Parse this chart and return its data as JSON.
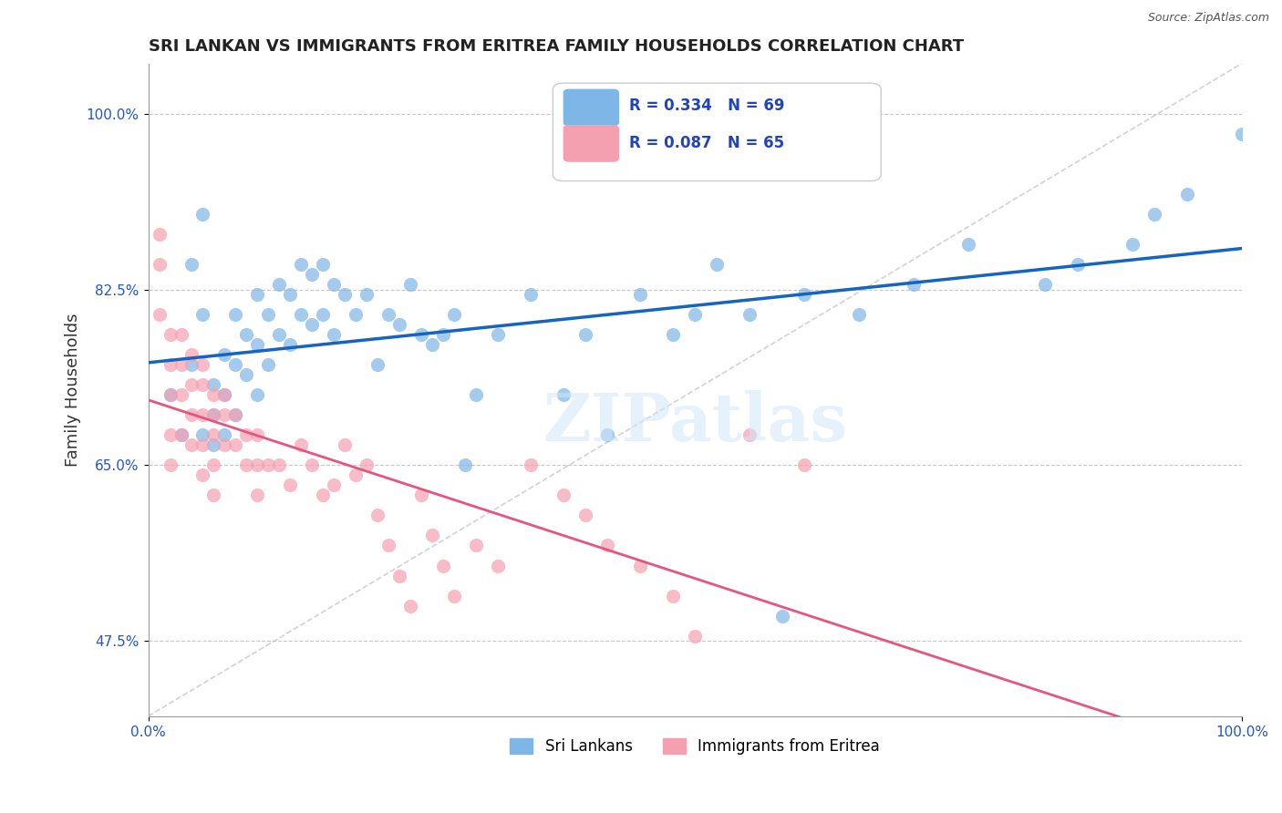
{
  "title": "SRI LANKAN VS IMMIGRANTS FROM ERITREA FAMILY HOUSEHOLDS CORRELATION CHART",
  "source": "Source: ZipAtlas.com",
  "xlabel": "",
  "ylabel": "Family Households",
  "watermark": "ZIPatlas",
  "xlim": [
    0.0,
    1.0
  ],
  "ylim": [
    0.4,
    1.05
  ],
  "yticks": [
    0.475,
    0.65,
    0.825,
    1.0
  ],
  "ytick_labels": [
    "47.5%",
    "65.0%",
    "82.5%",
    "100.0%"
  ],
  "xticks": [
    0.0,
    1.0
  ],
  "xtick_labels": [
    "0.0%",
    "100.0%"
  ],
  "blue_R": 0.334,
  "blue_N": 69,
  "pink_R": 0.087,
  "pink_N": 65,
  "blue_color": "#7EB6E8",
  "pink_color": "#F4A0B0",
  "blue_line_color": "#1565C0",
  "pink_line_color": "#E75480",
  "ref_line_color": "#C0C0C0",
  "legend_label_blue": "Sri Lankans",
  "legend_label_pink": "Immigrants from Eritrea",
  "blue_scatter_x": [
    0.02,
    0.03,
    0.04,
    0.04,
    0.05,
    0.05,
    0.05,
    0.06,
    0.06,
    0.06,
    0.07,
    0.07,
    0.07,
    0.08,
    0.08,
    0.08,
    0.09,
    0.09,
    0.1,
    0.1,
    0.1,
    0.11,
    0.11,
    0.12,
    0.12,
    0.13,
    0.13,
    0.14,
    0.14,
    0.15,
    0.15,
    0.16,
    0.16,
    0.17,
    0.17,
    0.18,
    0.19,
    0.2,
    0.21,
    0.22,
    0.23,
    0.24,
    0.25,
    0.26,
    0.27,
    0.28,
    0.29,
    0.3,
    0.32,
    0.35,
    0.38,
    0.4,
    0.42,
    0.45,
    0.48,
    0.5,
    0.52,
    0.55,
    0.58,
    0.6,
    0.65,
    0.7,
    0.75,
    0.82,
    0.85,
    0.9,
    0.92,
    0.95,
    1.0
  ],
  "blue_scatter_y": [
    0.72,
    0.68,
    0.85,
    0.75,
    0.9,
    0.8,
    0.68,
    0.73,
    0.7,
    0.67,
    0.76,
    0.72,
    0.68,
    0.8,
    0.75,
    0.7,
    0.78,
    0.74,
    0.82,
    0.77,
    0.72,
    0.8,
    0.75,
    0.83,
    0.78,
    0.82,
    0.77,
    0.85,
    0.8,
    0.84,
    0.79,
    0.85,
    0.8,
    0.83,
    0.78,
    0.82,
    0.8,
    0.82,
    0.75,
    0.8,
    0.79,
    0.83,
    0.78,
    0.77,
    0.78,
    0.8,
    0.65,
    0.72,
    0.78,
    0.82,
    0.72,
    0.78,
    0.68,
    0.82,
    0.78,
    0.8,
    0.85,
    0.8,
    0.5,
    0.82,
    0.8,
    0.83,
    0.87,
    0.83,
    0.85,
    0.87,
    0.9,
    0.92,
    0.98
  ],
  "pink_scatter_x": [
    0.01,
    0.01,
    0.01,
    0.02,
    0.02,
    0.02,
    0.02,
    0.02,
    0.03,
    0.03,
    0.03,
    0.03,
    0.04,
    0.04,
    0.04,
    0.04,
    0.05,
    0.05,
    0.05,
    0.05,
    0.05,
    0.06,
    0.06,
    0.06,
    0.06,
    0.06,
    0.07,
    0.07,
    0.07,
    0.08,
    0.08,
    0.09,
    0.09,
    0.1,
    0.1,
    0.1,
    0.11,
    0.12,
    0.13,
    0.14,
    0.15,
    0.16,
    0.17,
    0.18,
    0.19,
    0.2,
    0.21,
    0.22,
    0.23,
    0.24,
    0.25,
    0.26,
    0.27,
    0.28,
    0.3,
    0.32,
    0.35,
    0.38,
    0.4,
    0.42,
    0.45,
    0.48,
    0.5,
    0.55,
    0.6
  ],
  "pink_scatter_y": [
    0.88,
    0.85,
    0.8,
    0.78,
    0.75,
    0.72,
    0.68,
    0.65,
    0.78,
    0.75,
    0.72,
    0.68,
    0.76,
    0.73,
    0.7,
    0.67,
    0.75,
    0.73,
    0.7,
    0.67,
    0.64,
    0.72,
    0.7,
    0.68,
    0.65,
    0.62,
    0.72,
    0.7,
    0.67,
    0.7,
    0.67,
    0.68,
    0.65,
    0.68,
    0.65,
    0.62,
    0.65,
    0.65,
    0.63,
    0.67,
    0.65,
    0.62,
    0.63,
    0.67,
    0.64,
    0.65,
    0.6,
    0.57,
    0.54,
    0.51,
    0.62,
    0.58,
    0.55,
    0.52,
    0.57,
    0.55,
    0.65,
    0.62,
    0.6,
    0.57,
    0.55,
    0.52,
    0.48,
    0.68,
    0.65
  ]
}
